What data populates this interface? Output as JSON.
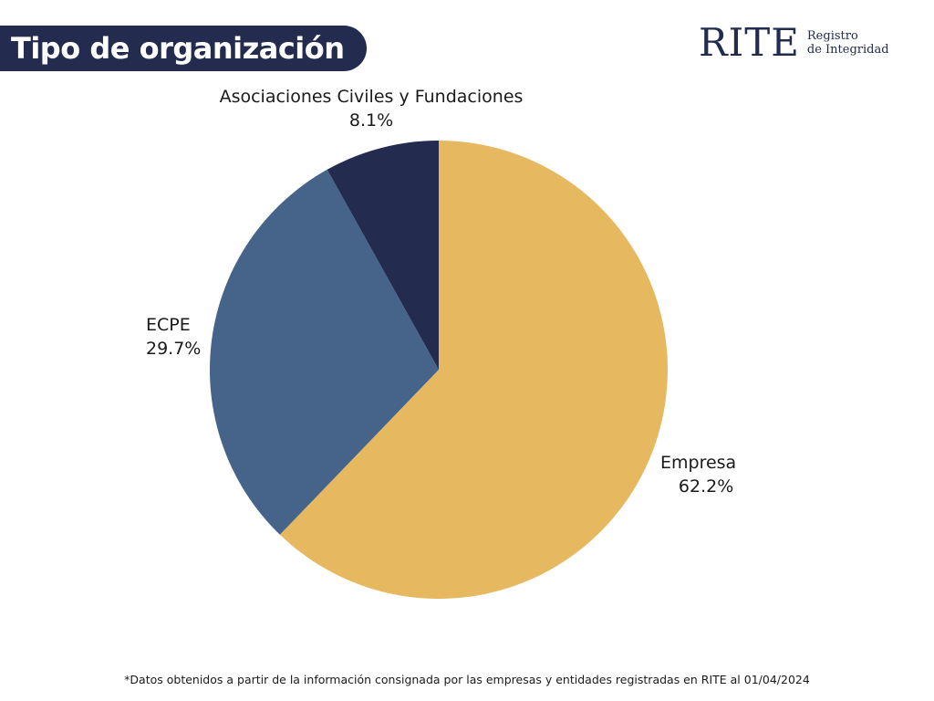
{
  "header": {
    "title": "Tipo de organización"
  },
  "logo": {
    "main": "RITE",
    "sub_line1": "Registro",
    "sub_line2": "de Integridad"
  },
  "colors": {
    "navy": "#232b4f",
    "slate": "#46648a",
    "gold": "#e6b961",
    "text": "#1a1a1a"
  },
  "chart_data": {
    "type": "pie",
    "title": "Tipo de organización",
    "slices": [
      {
        "label": "Empresa",
        "value": 62.2,
        "display": "62.2%",
        "color": "#e6b961"
      },
      {
        "label": "ECPE",
        "value": 29.7,
        "display": "29.7%",
        "color": "#46648a"
      },
      {
        "label": "Asociaciones Civiles y Fundaciones",
        "value": 8.1,
        "display": "8.1%",
        "color": "#232b4f"
      }
    ],
    "start": "top",
    "direction": "clockwise",
    "legend": "none"
  },
  "footnote": "*Datos obtenidos a partir de la información consignada por las empresas y entidades registradas en RITE al 01/04/2024"
}
